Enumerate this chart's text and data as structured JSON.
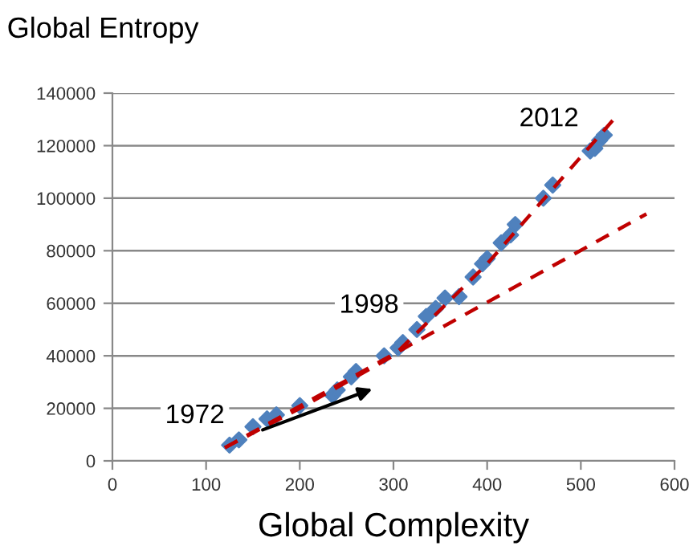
{
  "chart_data": {
    "type": "scatter",
    "title": "Global Entropy",
    "xlabel": "Global Complexity",
    "xlim": [
      0,
      600
    ],
    "xticks": [
      0,
      100,
      200,
      300,
      400,
      500,
      600
    ],
    "ylim": [
      0,
      140000
    ],
    "yticks": [
      0,
      20000,
      40000,
      60000,
      80000,
      100000,
      120000,
      140000
    ],
    "grid": "y",
    "legend": false,
    "series": [
      {
        "marker": "diamond",
        "color": "#4f81bd",
        "x": [
          125,
          135,
          150,
          165,
          175,
          200,
          235,
          240,
          255,
          260,
          290,
          305,
          310,
          325,
          335,
          345,
          355,
          370,
          385,
          395,
          400,
          415,
          425,
          430,
          460,
          470,
          510,
          515,
          520,
          525
        ],
        "values": [
          6000,
          8000,
          13000,
          16000,
          17500,
          21000,
          25000,
          27000,
          32000,
          34000,
          40000,
          43000,
          45000,
          50000,
          55000,
          58000,
          62000,
          62500,
          70000,
          75000,
          77000,
          83000,
          86000,
          90000,
          100000,
          105000,
          118000,
          119000,
          122000,
          124000
        ]
      },
      {
        "type": "line",
        "line_style": "dashed",
        "color": "#c00000",
        "x": [
          120,
          570
        ],
        "values": [
          5000,
          94000
        ]
      },
      {
        "type": "line",
        "line_style": "dashed",
        "color": "#c00000",
        "x": [
          120,
          200,
          300,
          400,
          535
        ],
        "values": [
          5000,
          20000,
          40000,
          75000,
          130000
        ]
      }
    ],
    "annotations": [
      {
        "text": "1972",
        "x": 88,
        "y": 17000
      },
      {
        "text": "1998",
        "x": 274,
        "y": 59000
      },
      {
        "text": "2012",
        "x": 466,
        "y": 130000
      }
    ]
  }
}
